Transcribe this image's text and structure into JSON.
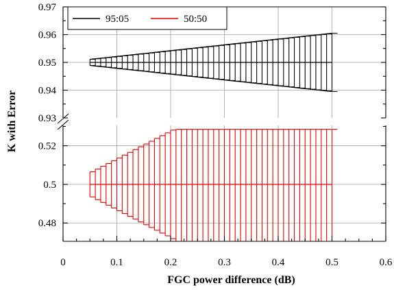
{
  "chart_data": {
    "type": "line",
    "xlabel": "FGC power difference (dB)",
    "ylabel": "K with Error",
    "xlim": [
      0,
      0.6
    ],
    "x_ticks": [
      "0",
      "0.1",
      "0.2",
      "0.3",
      "0.4",
      "0.5",
      "0.6"
    ],
    "y_axis_break": true,
    "upper_panel": {
      "ylim": [
        0.93,
        0.97
      ],
      "y_ticks": [
        "0.93",
        "0.94",
        "0.95",
        "0.96",
        "0.97"
      ]
    },
    "lower_panel": {
      "ylim": [
        0.4705,
        0.5305
      ],
      "y_ticks": [
        "0.48",
        "0.5",
        "0.52"
      ]
    },
    "grid": true,
    "legend": {
      "placement": "top-left",
      "entries": [
        "95:05",
        "50:50"
      ]
    },
    "series": [
      {
        "name": "95:05",
        "panel": "upper",
        "color": "#000000",
        "y": 0.95,
        "x_start": 0.05,
        "x_end": 0.5,
        "x_step": 0.01,
        "error_at_start": 0.0011,
        "error_at_end": 0.0105
      },
      {
        "name": "50:50",
        "panel": "lower",
        "color": "#e00000",
        "y": 0.5,
        "x_start": 0.05,
        "x_end": 0.5,
        "x_step": 0.01,
        "error_at_start": 0.0065,
        "error_slope_per_db": 0.144,
        "error_clip_upper": 0.5285,
        "error_clip_lower": 0.4705
      }
    ]
  }
}
